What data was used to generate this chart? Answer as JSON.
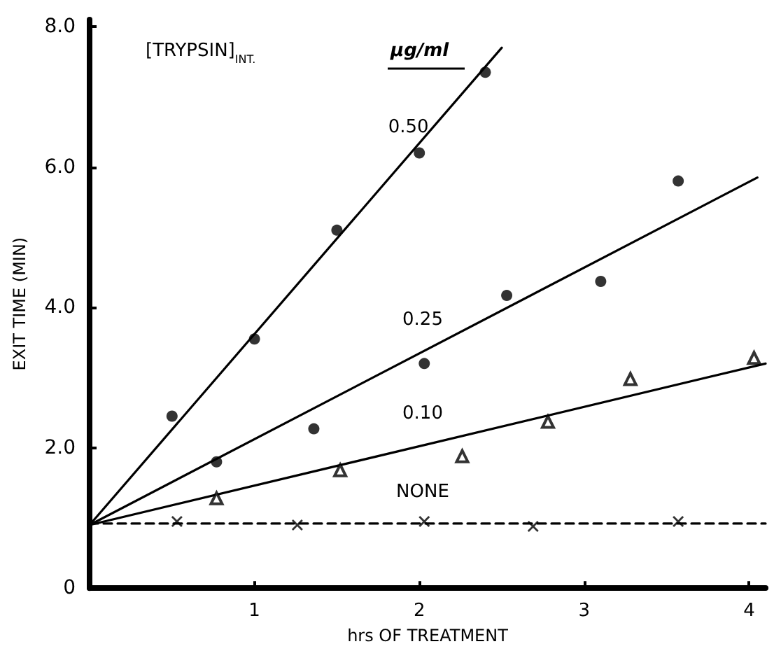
{
  "chart_data": {
    "type": "scatter",
    "title": "[TRYPSIN]$_{INT.}$",
    "legend_title": "µg/ml",
    "xlabel": "hrs OF TREATMENT",
    "ylabel": "EXIT TIME (MIN)",
    "xlim": [
      0,
      4.1
    ],
    "ylim": [
      0,
      8.1
    ],
    "xticks": [
      {
        "value": 0,
        "label": null
      },
      1,
      2,
      3,
      4
    ],
    "yticks": [
      {
        "value": 0,
        "label": "0"
      },
      {
        "value": 2,
        "label": "2.0"
      },
      {
        "value": 4,
        "label": "4.0"
      },
      {
        "value": 6,
        "label": "6.0"
      },
      {
        "value": 8,
        "label": "8.0"
      }
    ],
    "grid": false,
    "legend": false,
    "series": [
      {
        "marker": "circle",
        "color": "#000000",
        "x": [
          0.5,
          1.0,
          1.5,
          2.0,
          2.4
        ],
        "values": [
          2.45,
          3.55,
          5.1,
          6.2,
          7.35
        ]
      },
      {
        "type": "line",
        "name": "0.50",
        "marker": "none",
        "line_style": "solid",
        "color": "#000000",
        "x": [
          0,
          2.5
        ],
        "values": [
          0.9,
          7.7
        ]
      },
      {
        "marker": "circle",
        "color": "#000000",
        "x": [
          0.77,
          1.36,
          2.03,
          2.53,
          3.1,
          3.57
        ],
        "values": [
          1.8,
          2.27,
          3.2,
          4.17,
          4.37,
          5.8
        ]
      },
      {
        "type": "line",
        "name": "0.25",
        "marker": "none",
        "line_style": "solid",
        "color": "#000000",
        "x": [
          0,
          4.05
        ],
        "values": [
          0.9,
          5.85
        ]
      },
      {
        "marker": "triangle",
        "color": "#000000",
        "x": [
          0.77,
          1.52,
          2.26,
          2.78,
          3.28,
          4.03
        ],
        "values": [
          1.28,
          1.68,
          1.88,
          2.37,
          2.98,
          3.28
        ]
      },
      {
        "type": "line",
        "name": "0.10",
        "marker": "none",
        "line_style": "solid",
        "color": "#000000",
        "x": [
          0,
          4.1
        ],
        "values": [
          0.9,
          3.2
        ]
      },
      {
        "marker": "cross",
        "color": "#000000",
        "x": [
          0.53,
          1.26,
          2.03,
          2.69,
          3.57
        ],
        "values": [
          0.95,
          0.9,
          0.95,
          0.88,
          0.95
        ]
      },
      {
        "type": "line",
        "name": "NONE",
        "marker": "none",
        "line_style": "dashed",
        "color": "#000000",
        "x": [
          0,
          4.1
        ],
        "values": [
          0.92,
          0.92
        ]
      }
    ]
  }
}
